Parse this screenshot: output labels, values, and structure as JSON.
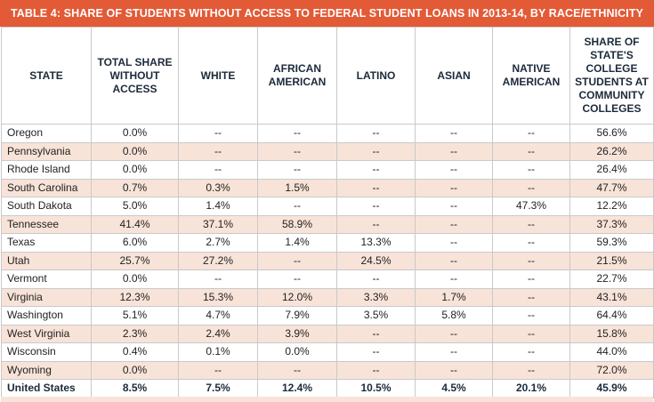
{
  "title": "TABLE 4: SHARE OF STUDENTS WITHOUT ACCESS TO FEDERAL STUDENT LOANS IN 2013-14, BY RACE/ETHNICITY",
  "headers": [
    "STATE",
    "TOTAL SHARE WITHOUT ACCESS",
    "WHITE",
    "AFRICAN AMERICAN",
    "LATINO",
    "ASIAN",
    "NATIVE AMERICAN",
    "SHARE OF STATE'S COLLEGE STUDENTS AT COMMUNITY COLLEGES"
  ],
  "rows": [
    [
      "Oregon",
      "0.0%",
      "--",
      "--",
      "--",
      "--",
      "--",
      "56.6%"
    ],
    [
      "Pennsylvania",
      "0.0%",
      "--",
      "--",
      "--",
      "--",
      "--",
      "26.2%"
    ],
    [
      "Rhode Island",
      "0.0%",
      "--",
      "--",
      "--",
      "--",
      "--",
      "26.4%"
    ],
    [
      "South Carolina",
      "0.7%",
      "0.3%",
      "1.5%",
      "--",
      "--",
      "--",
      "47.7%"
    ],
    [
      "South Dakota",
      "5.0%",
      "1.4%",
      "--",
      "--",
      "--",
      "47.3%",
      "12.2%"
    ],
    [
      "Tennessee",
      "41.4%",
      "37.1%",
      "58.9%",
      "--",
      "--",
      "--",
      "37.3%"
    ],
    [
      "Texas",
      "6.0%",
      "2.7%",
      "1.4%",
      "13.3%",
      "--",
      "--",
      "59.3%"
    ],
    [
      "Utah",
      "25.7%",
      "27.2%",
      "--",
      "24.5%",
      "--",
      "--",
      "21.5%"
    ],
    [
      "Vermont",
      "0.0%",
      "--",
      "--",
      "--",
      "--",
      "--",
      "22.7%"
    ],
    [
      "Virginia",
      "12.3%",
      "15.3%",
      "12.0%",
      "3.3%",
      "1.7%",
      "--",
      "43.1%"
    ],
    [
      "Washington",
      "5.1%",
      "4.7%",
      "7.9%",
      "3.5%",
      "5.8%",
      "--",
      "64.4%"
    ],
    [
      "West Virginia",
      "2.3%",
      "2.4%",
      "3.9%",
      "--",
      "--",
      "--",
      "15.8%"
    ],
    [
      "Wisconsin",
      "0.4%",
      "0.1%",
      "0.0%",
      "--",
      "--",
      "--",
      "44.0%"
    ],
    [
      "Wyoming",
      "0.0%",
      "--",
      "--",
      "--",
      "--",
      "--",
      "72.0%"
    ]
  ],
  "total_row": [
    "United States",
    "8.5%",
    "7.5%",
    "12.4%",
    "10.5%",
    "4.5%",
    "20.1%",
    "45.9%"
  ],
  "colors": {
    "title_bg": "#e25a36",
    "shade": "#f8e3d8",
    "header_text": "#1c2a3a"
  }
}
